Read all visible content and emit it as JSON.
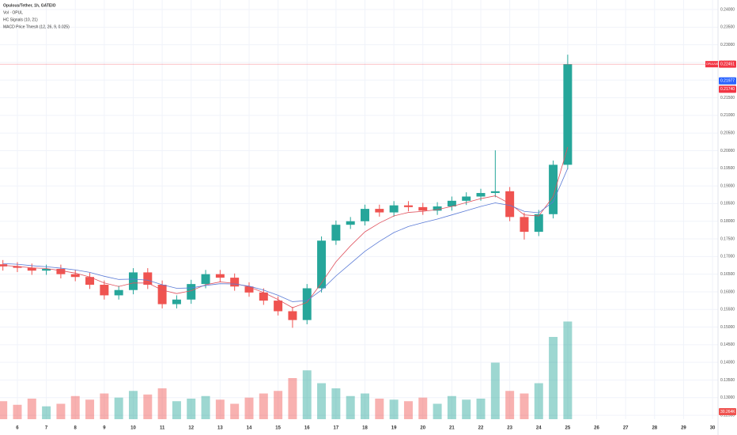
{
  "chart_data": {
    "type": "candlestick",
    "title": "Opulous/Tether, 1h, GATEIO",
    "indicators": [
      "Vol · OPUL",
      "HC Signals (10, 21)",
      "MACD Price Thresh (12, 26, 9, 0.025)"
    ],
    "x": [
      5.5,
      6,
      6.5,
      7,
      7.5,
      8,
      8.5,
      9,
      9.5,
      10,
      10.5,
      11,
      11.5,
      12,
      12.5,
      13,
      13.5,
      14,
      14.5,
      15,
      15.5,
      16,
      16.5,
      17,
      17.5,
      18,
      18.5,
      19,
      19.5,
      20,
      20.5,
      21,
      21.5,
      22,
      22.5,
      23,
      23.5,
      24,
      24.5,
      25
    ],
    "open": [
      0.1678,
      0.1672,
      0.1668,
      0.166,
      0.1665,
      0.165,
      0.1642,
      0.162,
      0.159,
      0.1605,
      0.1655,
      0.162,
      0.1565,
      0.1578,
      0.1622,
      0.165,
      0.164,
      0.1615,
      0.1598,
      0.1575,
      0.1545,
      0.152,
      0.161,
      0.1745,
      0.179,
      0.18,
      0.1835,
      0.1825,
      0.1845,
      0.184,
      0.183,
      0.1842,
      0.1858,
      0.187,
      0.188,
      0.1885,
      0.1812,
      0.177,
      0.182,
      0.196
    ],
    "high": [
      0.169,
      0.1684,
      0.168,
      0.1677,
      0.1677,
      0.1662,
      0.1654,
      0.1632,
      0.1617,
      0.1667,
      0.1667,
      0.1632,
      0.159,
      0.1634,
      0.1662,
      0.1662,
      0.1652,
      0.1627,
      0.161,
      0.1587,
      0.1557,
      0.1622,
      0.1757,
      0.1802,
      0.1812,
      0.1847,
      0.1847,
      0.1857,
      0.1857,
      0.1852,
      0.1854,
      0.187,
      0.1882,
      0.1892,
      0.2001,
      0.1897,
      0.1824,
      0.1832,
      0.1972,
      0.2272
    ],
    "low": [
      0.166,
      0.1656,
      0.1648,
      0.1648,
      0.1638,
      0.163,
      0.1608,
      0.1578,
      0.1578,
      0.1593,
      0.1608,
      0.1553,
      0.1553,
      0.1566,
      0.161,
      0.1628,
      0.1603,
      0.1586,
      0.1563,
      0.1533,
      0.1498,
      0.1508,
      0.1598,
      0.1733,
      0.1778,
      0.1788,
      0.1813,
      0.1813,
      0.1828,
      0.1818,
      0.1818,
      0.183,
      0.1846,
      0.1858,
      0.1868,
      0.18,
      0.1748,
      0.1758,
      0.1808,
      0.1948
    ],
    "close": [
      0.1672,
      0.1668,
      0.166,
      0.1665,
      0.165,
      0.1642,
      0.162,
      0.159,
      0.1605,
      0.1655,
      0.162,
      0.1565,
      0.1578,
      0.1622,
      0.165,
      0.164,
      0.1615,
      0.1598,
      0.1575,
      0.1545,
      0.152,
      0.161,
      0.1745,
      0.179,
      0.18,
      0.1835,
      0.1825,
      0.1845,
      0.184,
      0.183,
      0.1842,
      0.1858,
      0.187,
      0.188,
      0.1885,
      0.1812,
      0.177,
      0.182,
      0.196,
      0.2245
    ],
    "volume": [
      35,
      28,
      40,
      25,
      30,
      45,
      38,
      50,
      42,
      55,
      48,
      60,
      35,
      40,
      45,
      38,
      30,
      42,
      50,
      55,
      80,
      95,
      70,
      60,
      45,
      50,
      40,
      38,
      35,
      42,
      30,
      45,
      38,
      40,
      110,
      55,
      50,
      70,
      160,
      190
    ],
    "up_color": "#26a69a",
    "down_color": "#ef5350",
    "series": [
      {
        "name": "MA fast",
        "color": "#e0525e",
        "values": [
          0.1675,
          0.1672,
          0.1668,
          0.1666,
          0.166,
          0.1653,
          0.1642,
          0.1625,
          0.1615,
          0.1625,
          0.1625,
          0.1605,
          0.1595,
          0.1603,
          0.162,
          0.1628,
          0.1624,
          0.1614,
          0.1598,
          0.1578,
          0.1555,
          0.157,
          0.1625,
          0.1685,
          0.173,
          0.177,
          0.1795,
          0.1815,
          0.1825,
          0.1828,
          0.1833,
          0.1842,
          0.1853,
          0.1864,
          0.1872,
          0.185,
          0.1818,
          0.1815,
          0.187,
          0.201
        ]
      },
      {
        "name": "MA slow",
        "color": "#5b7bd6",
        "values": [
          0.168,
          0.1678,
          0.1674,
          0.1671,
          0.1667,
          0.1662,
          0.1655,
          0.1644,
          0.1635,
          0.1636,
          0.1633,
          0.162,
          0.161,
          0.1611,
          0.1618,
          0.1623,
          0.1622,
          0.1616,
          0.1605,
          0.159,
          0.1572,
          0.1575,
          0.1605,
          0.1645,
          0.168,
          0.1715,
          0.1743,
          0.1768,
          0.1785,
          0.1796,
          0.1806,
          0.1818,
          0.183,
          0.1842,
          0.1852,
          0.1845,
          0.1828,
          0.1824,
          0.1855,
          0.195
        ]
      }
    ],
    "xlim": [
      5.4,
      30.19
    ],
    "xticks": [
      6,
      7,
      8,
      9,
      10,
      11,
      12,
      13,
      14,
      15,
      16,
      17,
      18,
      19,
      20,
      21,
      22,
      23,
      24,
      25,
      26,
      27,
      28,
      29,
      30
    ],
    "ylim": [
      0.1239,
      0.2427
    ],
    "yticks": [
      {
        "value": 0.125,
        "label": "0.12500"
      },
      {
        "value": 0.13,
        "label": "0.13000"
      },
      {
        "value": 0.135,
        "label": "0.13500"
      },
      {
        "value": 0.14,
        "label": "0.14000"
      },
      {
        "value": 0.145,
        "label": "0.14500"
      },
      {
        "value": 0.15,
        "label": "0.15000"
      },
      {
        "value": 0.155,
        "label": "0.15500"
      },
      {
        "value": 0.16,
        "label": "0.16000"
      },
      {
        "value": 0.165,
        "label": "0.16500"
      },
      {
        "value": 0.17,
        "label": "0.17000"
      },
      {
        "value": 0.175,
        "label": "0.17500"
      },
      {
        "value": 0.18,
        "label": "0.18000"
      },
      {
        "value": 0.185,
        "label": "0.18500"
      },
      {
        "value": 0.19,
        "label": "0.19000"
      },
      {
        "value": 0.195,
        "label": "0.19500"
      },
      {
        "value": 0.2,
        "label": "0.20000"
      },
      {
        "value": 0.205,
        "label": "0.20500"
      },
      {
        "value": 0.21,
        "label": "0.21000"
      },
      {
        "value": 0.215,
        "label": "0.21500"
      },
      {
        "value": 0.22,
        "label": "0.22000"
      },
      {
        "value": 0.225,
        "label": "0.22500"
      },
      {
        "value": 0.23,
        "label": "0.23000"
      },
      {
        "value": 0.235,
        "label": "0.23500"
      },
      {
        "value": 0.24,
        "label": "0.24000"
      }
    ],
    "grid": true,
    "symbol_tag": "OPUL/USDT",
    "price_tags": [
      {
        "value": 0.22451,
        "label": "0.22451",
        "color": "#f23645"
      },
      {
        "value": 0.21977,
        "label": "0.21977",
        "color": "#2962ff"
      },
      {
        "value": 0.2174,
        "label": "0.21740",
        "color": "#f23645"
      }
    ],
    "volume_tag": "30.264K"
  }
}
